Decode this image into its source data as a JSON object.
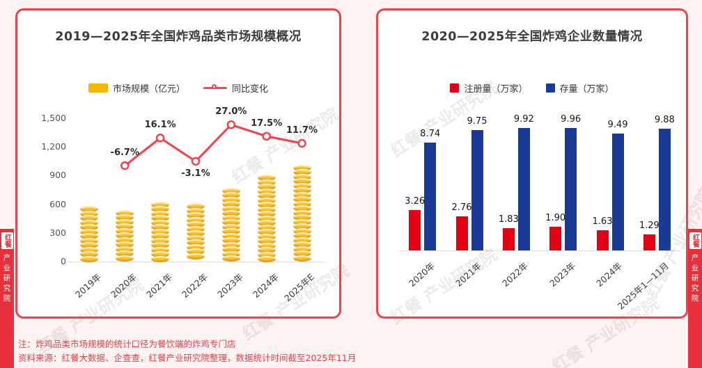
{
  "page": {
    "notes": [
      "注：炸鸡品类市场规模的统计口径为餐饮端的炸鸡专门店",
      "资料来源：红餐大数据、企查查，红餐产业研究院整理，数据统计时间截至2025年11月"
    ]
  },
  "watermark": {
    "brand": "红餐",
    "org": "产业研究院"
  },
  "colors": {
    "card_border": "#f2414d",
    "bar_gold": "#f5b70a",
    "line_red": "#f4464f",
    "registrations_red": "#e60013",
    "stock_blue": "#1a3a97",
    "note_red": "#e8404b",
    "banner_red": "#e8303c",
    "background": "#fdf3f2"
  },
  "chart_data": [
    {
      "type": "bar",
      "title": "2019—2025年全国炸鸡品类市场规模概况",
      "categories": [
        "2019年",
        "2020年",
        "2021年",
        "2022年",
        "2023年",
        "2024年",
        "2025年E"
      ],
      "series": [
        {
          "name": "市场规模（亿元）",
          "type": "bar",
          "color": "#f5b70a",
          "values": [
            580,
            541,
            628,
            609,
            773,
            908,
            1014
          ]
        },
        {
          "name": "同比变化",
          "type": "line",
          "color": "#f4464f",
          "values": [
            null,
            -6.7,
            16.1,
            -3.1,
            27.0,
            17.5,
            11.7
          ],
          "labels": [
            "",
            "-6.7%",
            "16.1%",
            "-3.1%",
            "27.0%",
            "17.5%",
            "11.7%"
          ]
        }
      ],
      "ylim": [
        0,
        1500
      ],
      "yticks": [
        0,
        300,
        600,
        900,
        1200,
        1500
      ],
      "ytick_labels": [
        "0",
        "300",
        "600",
        "900",
        "1,200",
        "1,500"
      ],
      "grid": false,
      "legend_position": "top"
    },
    {
      "type": "bar",
      "title": "2020—2025年全国炸鸡企业数量情况",
      "categories": [
        "2020年",
        "2021年",
        "2022年",
        "2023年",
        "2024年",
        "2025年1—11月"
      ],
      "series": [
        {
          "name": "注册量（万家）",
          "color": "#e60013",
          "values": [
            3.26,
            2.76,
            1.83,
            1.9,
            1.63,
            1.29
          ]
        },
        {
          "name": "存量（万家）",
          "color": "#1a3a97",
          "values": [
            8.74,
            9.75,
            9.92,
            9.96,
            9.49,
            9.88
          ]
        }
      ],
      "ylim": [
        0,
        11
      ],
      "grid": false,
      "legend_position": "top"
    }
  ]
}
